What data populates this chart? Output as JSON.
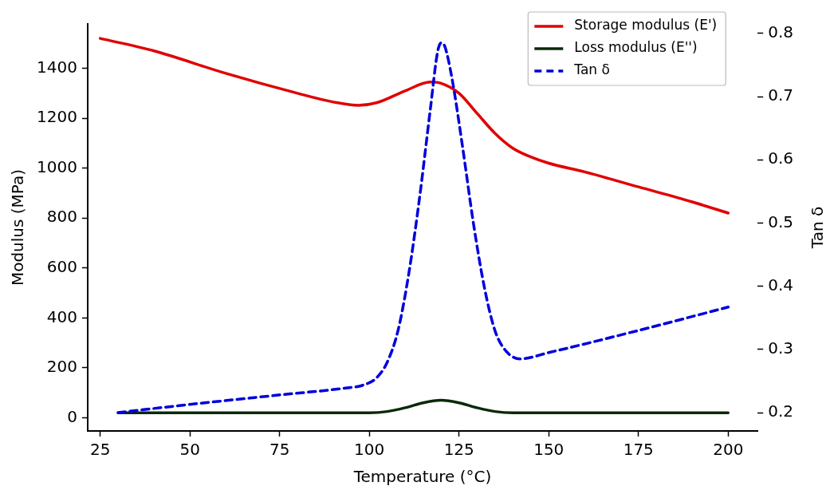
{
  "chart_data": {
    "type": "line",
    "xlabel": "Temperature (°C)",
    "ylabel": "Modulus (MPa)",
    "y2label": "Tan δ",
    "xlim": [
      21.5,
      208.2
    ],
    "xticks": [
      25,
      50,
      75,
      100,
      125,
      150,
      175,
      200
    ],
    "ylim": [
      -53,
      1578
    ],
    "yticks": [
      0,
      200,
      400,
      600,
      800,
      1000,
      1200,
      1400
    ],
    "y2lim": [
      0.171,
      0.815
    ],
    "y2ticks": [
      0.2,
      0.3,
      0.4,
      0.5,
      0.6,
      0.7,
      0.8
    ],
    "grid": false,
    "legend": "top right",
    "marker": "none",
    "series": [
      {
        "name": "Storage modulus (E')",
        "color": "#e00000",
        "line_style": "solid",
        "x": [
          25,
          40,
          60,
          80,
          90,
          97,
          102,
          110,
          117,
          120,
          125,
          130,
          135,
          140,
          145,
          150,
          160,
          175,
          190,
          200
        ],
        "values": [
          1520,
          1470,
          1380,
          1300,
          1265,
          1252,
          1262,
          1310,
          1345,
          1340,
          1300,
          1220,
          1140,
          1080,
          1045,
          1020,
          985,
          925,
          865,
          820
        ]
      },
      {
        "name": "Loss modulus (E'')",
        "color": "#0a2a0a",
        "line_style": "solid",
        "x": [
          30,
          60,
          100,
          105,
          110,
          115,
          120,
          125,
          130,
          135,
          140,
          150,
          200
        ],
        "values": [
          20,
          20,
          20,
          25,
          40,
          60,
          70,
          60,
          40,
          25,
          20,
          20,
          20
        ]
      },
      {
        "name": "Tan δ",
        "color": "#0000dd",
        "line_style": "dashed",
        "axis": "y2",
        "x": [
          30,
          50,
          75,
          95,
          98,
          102,
          105,
          108,
          111,
          114,
          117,
          119,
          120,
          121,
          123,
          126,
          129,
          132,
          135,
          138,
          142,
          150,
          175,
          200
        ],
        "values": [
          0.2,
          0.213,
          0.228,
          0.24,
          0.243,
          0.255,
          0.28,
          0.33,
          0.42,
          0.54,
          0.68,
          0.77,
          0.785,
          0.78,
          0.73,
          0.62,
          0.5,
          0.4,
          0.33,
          0.298,
          0.285,
          0.295,
          0.33,
          0.367
        ]
      }
    ]
  }
}
